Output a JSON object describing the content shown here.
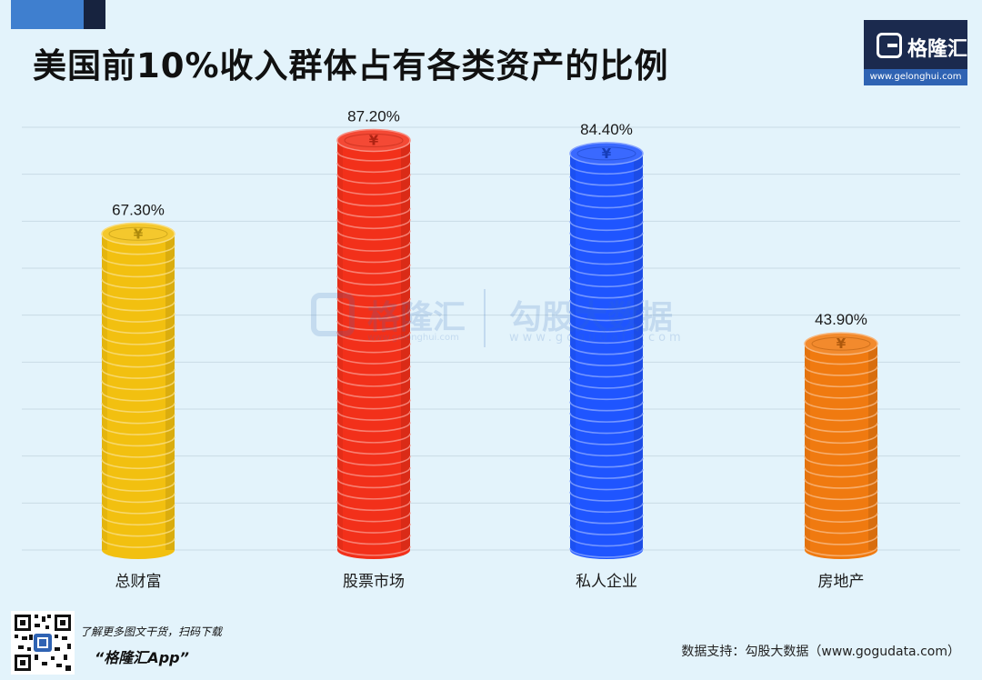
{
  "header": {
    "title": "美国前10%收入群体占有各类资产的比例"
  },
  "logo": {
    "name": "格隆汇",
    "url": "www.gelonghui.com"
  },
  "watermark": {
    "brand1": "格隆汇",
    "brand1_url": "www.gelonghui.com",
    "brand2": "勾股大数据",
    "brand2_url": "www.gogudata.com"
  },
  "footer": {
    "promo_line": "了解更多图文干货，扫码下载",
    "app_name": "“格隆汇App”",
    "source": "数据支持：勾股大数据（www.gogudata.com）"
  },
  "colors": {
    "background": "#e3f3fb",
    "gold": "#f2c010",
    "red": "#f2301a",
    "blue": "#1f55ff",
    "orange": "#f07a10",
    "logo_bg": "#1b2a4e",
    "corner_accent": "#3f7fcf"
  },
  "icons": {
    "coin": "yen-coin-icon",
    "logo": "gelonghui-logo-icon",
    "qr": "qr-code-icon"
  },
  "chart_data": {
    "type": "bar",
    "title": "美国前10%收入群体占有各类资产的比例",
    "categories": [
      "总财富",
      "股票市场",
      "私人企业",
      "房地产"
    ],
    "values": [
      67.3,
      87.2,
      84.4,
      43.9
    ],
    "value_labels": [
      "67.30%",
      "87.20%",
      "84.40%",
      "43.90%"
    ],
    "bar_colors": [
      "#f2c010",
      "#f2301a",
      "#1f55ff",
      "#f07a10"
    ],
    "bar_style": "stacked coins",
    "ylim": [
      0,
      90
    ],
    "grid": true,
    "y_axis_labels_visible": false,
    "legend": "none"
  }
}
